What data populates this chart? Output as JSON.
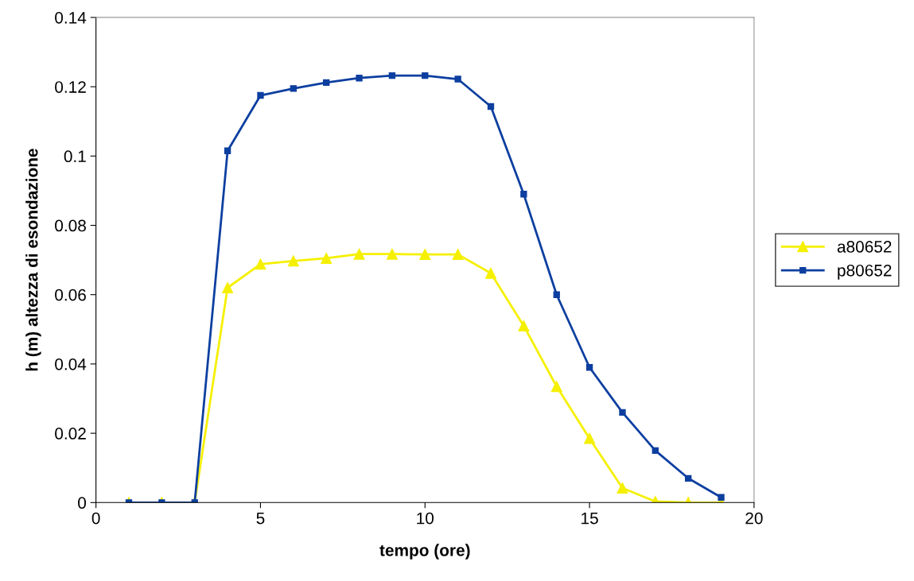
{
  "chart_data": {
    "type": "line",
    "xlabel": "tempo (ore)",
    "ylabel": "h (m) altezza di esondazione",
    "x": [
      1,
      2,
      3,
      4,
      5,
      6,
      7,
      8,
      9,
      10,
      11,
      12,
      13,
      14,
      15,
      16,
      17,
      18,
      19
    ],
    "series": [
      {
        "name": "a80652",
        "color": "#f5f000",
        "marker": "triangle",
        "values": [
          0,
          0,
          0,
          0.062,
          0.0688,
          0.0697,
          0.0705,
          0.0717,
          0.0717,
          0.0716,
          0.0716,
          0.0662,
          0.051,
          0.0335,
          0.0185,
          0.0042,
          0.0003,
          0,
          0
        ]
      },
      {
        "name": "p80652",
        "color": "#0d3fa0",
        "marker": "square",
        "values": [
          0,
          0,
          0,
          0.1015,
          0.1175,
          0.1195,
          0.1212,
          0.1225,
          0.1232,
          0.1232,
          0.1222,
          0.1143,
          0.089,
          0.06,
          0.039,
          0.026,
          0.015,
          0.007,
          0.0015
        ]
      }
    ],
    "xlim": [
      0,
      20
    ],
    "xticks": [
      0,
      5,
      10,
      15,
      20
    ],
    "ylim": [
      0,
      0.14
    ],
    "yticks": [
      0,
      0.02,
      0.04,
      0.06,
      0.08,
      0.1,
      0.12,
      0.14
    ],
    "grid": false,
    "legend": "right",
    "line_style": "solid"
  }
}
